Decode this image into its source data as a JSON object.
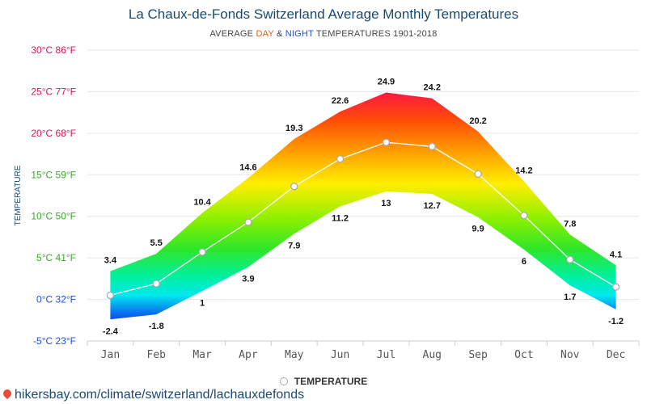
{
  "title": "La Chaux-de-Fonds Switzerland Average Monthly Temperatures",
  "subtitle": {
    "prefix": "AVERAGE ",
    "day": "DAY",
    "amp": " & ",
    "night": "NIGHT",
    "suffix": " TEMPERATURES 1901-2018"
  },
  "legend_label": "TEMPERATURE",
  "footer": "hikersbay.com/climate/switzerland/lachauxdefonds",
  "colors": {
    "title": "#1a4a72",
    "day_accent": "#e8620c",
    "night_accent": "#1f4fd6",
    "average_line": "#ffffff",
    "marker_border": "#aaaaaa",
    "gridline": "#e6e6e6"
  },
  "chart_data": {
    "type": "area",
    "categories": [
      "Jan",
      "Feb",
      "Mar",
      "Apr",
      "May",
      "Jun",
      "Jul",
      "Aug",
      "Sep",
      "Oct",
      "Nov",
      "Dec"
    ],
    "series": [
      {
        "name": "DAY",
        "values": [
          3.4,
          5.5,
          10.4,
          14.6,
          19.3,
          22.6,
          24.9,
          24.2,
          20.2,
          14.2,
          7.8,
          4.1
        ]
      },
      {
        "name": "NIGHT",
        "values": [
          -2.4,
          -1.8,
          1,
          3.9,
          7.9,
          11.2,
          13,
          12.7,
          9.9,
          6,
          1.7,
          -1.2
        ]
      },
      {
        "name": "TEMPERATURE",
        "values": [
          0.5,
          1.9,
          5.7,
          9.3,
          13.6,
          16.9,
          18.9,
          18.4,
          15.1,
          10.1,
          4.8,
          1.5
        ]
      }
    ],
    "y_ticks": [
      {
        "value": 30,
        "label": "30°C 86°F",
        "color": "#e0105a"
      },
      {
        "value": 25,
        "label": "25°C 77°F",
        "color": "#e0105a"
      },
      {
        "value": 20,
        "label": "20°C 68°F",
        "color": "#e0105a"
      },
      {
        "value": 15,
        "label": "15°C 59°F",
        "color": "#3aa82a"
      },
      {
        "value": 10,
        "label": "10°C 50°F",
        "color": "#3aa82a"
      },
      {
        "value": 5,
        "label": "5°C 41°F",
        "color": "#3aa82a"
      },
      {
        "value": 0,
        "label": "0°C 32°F",
        "color": "#1f4fd6"
      },
      {
        "value": -5,
        "label": "-5°C 23°F",
        "color": "#1f4fd6"
      }
    ],
    "ylabel": "TEMPERATURE",
    "ylim": [
      -5,
      30
    ],
    "grid": true,
    "legend_position": "bottom"
  }
}
